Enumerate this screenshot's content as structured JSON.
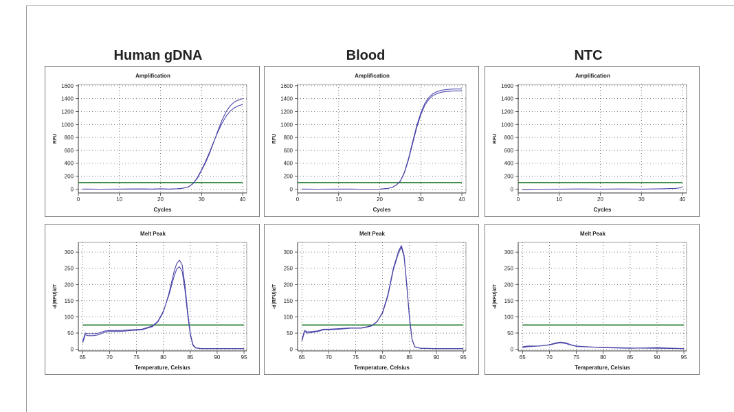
{
  "columns": [
    "Human gDNA",
    "Blood",
    "NTC"
  ],
  "chart_data": [
    {
      "type": "line",
      "column": "Human gDNA",
      "title": "Amplification",
      "xlabel": "Cycles",
      "ylabel": "RFU",
      "xlim": [
        0,
        41
      ],
      "ylim": [
        -60,
        1620
      ],
      "xticks": [
        0,
        10,
        20,
        30,
        40
      ],
      "yticks": [
        0,
        200,
        400,
        600,
        800,
        1000,
        1200,
        1400,
        1600
      ],
      "threshold": 100,
      "series": [
        {
          "x": [
            1,
            5,
            10,
            15,
            18,
            20,
            22,
            24,
            25,
            26,
            27,
            28,
            29,
            30,
            31,
            32,
            33,
            34,
            35,
            36,
            37,
            38,
            39,
            40
          ],
          "values": [
            0,
            -2,
            0,
            2,
            0,
            5,
            0,
            5,
            10,
            20,
            40,
            90,
            180,
            300,
            430,
            580,
            740,
            890,
            1020,
            1130,
            1210,
            1260,
            1290,
            1310
          ]
        },
        {
          "x": [
            1,
            5,
            10,
            15,
            18,
            20,
            22,
            24,
            25,
            26,
            27,
            28,
            29,
            30,
            31,
            32,
            33,
            34,
            35,
            36,
            37,
            38,
            39,
            40
          ],
          "values": [
            0,
            -2,
            0,
            2,
            0,
            5,
            0,
            5,
            10,
            20,
            40,
            90,
            170,
            290,
            410,
            560,
            730,
            910,
            1070,
            1200,
            1290,
            1350,
            1380,
            1400
          ]
        }
      ]
    },
    {
      "type": "line",
      "column": "Blood",
      "title": "Amplification",
      "xlabel": "Cycles",
      "ylabel": "RFU",
      "xlim": [
        0,
        41
      ],
      "ylim": [
        -60,
        1620
      ],
      "xticks": [
        0,
        10,
        20,
        30,
        40
      ],
      "yticks": [
        0,
        200,
        400,
        600,
        800,
        1000,
        1200,
        1400,
        1600
      ],
      "threshold": 100,
      "series": [
        {
          "x": [
            1,
            5,
            10,
            15,
            20,
            21,
            22,
            23,
            24,
            25,
            26,
            27,
            28,
            29,
            30,
            31,
            32,
            33,
            34,
            35,
            36,
            37,
            38,
            39,
            40
          ],
          "values": [
            0,
            -2,
            0,
            -2,
            0,
            5,
            10,
            25,
            60,
            120,
            250,
            450,
            700,
            950,
            1150,
            1300,
            1390,
            1450,
            1480,
            1500,
            1510,
            1515,
            1520,
            1520,
            1520
          ]
        },
        {
          "x": [
            1,
            5,
            10,
            15,
            20,
            21,
            22,
            23,
            24,
            25,
            26,
            27,
            28,
            29,
            30,
            31,
            32,
            33,
            34,
            35,
            36,
            37,
            38,
            39,
            40
          ],
          "values": [
            0,
            -2,
            0,
            -2,
            0,
            5,
            10,
            25,
            60,
            125,
            260,
            470,
            730,
            980,
            1180,
            1330,
            1420,
            1480,
            1510,
            1530,
            1540,
            1545,
            1550,
            1550,
            1550
          ]
        }
      ]
    },
    {
      "type": "line",
      "column": "NTC",
      "title": "Amplification",
      "xlabel": "Cycles",
      "ylabel": "RFU",
      "xlim": [
        0,
        41
      ],
      "ylim": [
        -60,
        1620
      ],
      "xticks": [
        0,
        10,
        20,
        30,
        40
      ],
      "yticks": [
        0,
        200,
        400,
        600,
        800,
        1000,
        1200,
        1400,
        1600
      ],
      "threshold": 100,
      "series": [
        {
          "x": [
            1,
            3,
            5,
            10,
            15,
            20,
            25,
            30,
            35,
            38,
            39,
            40
          ],
          "values": [
            -10,
            -5,
            -2,
            0,
            2,
            0,
            2,
            0,
            5,
            10,
            15,
            25
          ]
        }
      ]
    },
    {
      "type": "line",
      "column": "Human gDNA",
      "title": "Melt Peak",
      "xlabel": "Temperature, Celsius",
      "ylabel": "-d(RFU)/dT",
      "xlim": [
        64.2,
        95.5
      ],
      "ylim": [
        -5,
        330
      ],
      "xticks": [
        65,
        70,
        75,
        80,
        85,
        90,
        95
      ],
      "yticks": [
        0,
        50,
        100,
        150,
        200,
        250,
        300
      ],
      "threshold": 75,
      "series": [
        {
          "x": [
            65,
            65.5,
            66,
            67,
            68,
            69,
            70,
            72,
            74,
            76,
            78,
            79,
            80,
            81,
            82,
            82.5,
            83,
            83.5,
            84,
            84.5,
            85,
            85.5,
            86,
            87,
            90,
            95
          ],
          "values": [
            20,
            45,
            42,
            42,
            45,
            52,
            55,
            55,
            58,
            60,
            70,
            85,
            115,
            170,
            240,
            265,
            275,
            260,
            200,
            120,
            50,
            15,
            5,
            2,
            2,
            2
          ]
        },
        {
          "x": [
            65,
            65.5,
            66,
            67,
            68,
            69,
            70,
            72,
            74,
            76,
            78,
            79,
            80,
            81,
            82,
            82.5,
            83,
            83.5,
            84,
            84.5,
            85,
            85.5,
            86,
            87,
            90,
            95
          ],
          "values": [
            25,
            50,
            48,
            48,
            50,
            56,
            58,
            58,
            60,
            62,
            72,
            87,
            118,
            165,
            225,
            248,
            255,
            240,
            185,
            110,
            45,
            12,
            4,
            2,
            2,
            2
          ]
        }
      ]
    },
    {
      "type": "line",
      "column": "Blood",
      "title": "Melt Peak",
      "xlabel": "Temperature, Celsius",
      "ylabel": "-d(RFU)/dT",
      "xlim": [
        64.2,
        95.5
      ],
      "ylim": [
        -5,
        330
      ],
      "xticks": [
        65,
        70,
        75,
        80,
        85,
        90,
        95
      ],
      "yticks": [
        0,
        50,
        100,
        150,
        200,
        250,
        300
      ],
      "threshold": 75,
      "series": [
        {
          "x": [
            65,
            65.5,
            66,
            67,
            68,
            69,
            70,
            72,
            74,
            76,
            77,
            78,
            79,
            80,
            81,
            82,
            83,
            83.5,
            84,
            84.5,
            85,
            85.5,
            86,
            87,
            90,
            95
          ],
          "values": [
            25,
            55,
            50,
            52,
            55,
            60,
            60,
            62,
            65,
            65,
            68,
            72,
            85,
            115,
            170,
            250,
            305,
            320,
            290,
            200,
            100,
            30,
            8,
            3,
            2,
            2
          ]
        },
        {
          "x": [
            65,
            65.5,
            66,
            67,
            68,
            69,
            70,
            72,
            74,
            76,
            77,
            78,
            79,
            80,
            81,
            82,
            83,
            83.5,
            84,
            84.5,
            85,
            85.5,
            86,
            87,
            90,
            95
          ],
          "values": [
            30,
            58,
            54,
            55,
            57,
            62,
            62,
            64,
            66,
            66,
            69,
            73,
            86,
            112,
            165,
            245,
            300,
            315,
            285,
            195,
            95,
            28,
            7,
            3,
            2,
            2
          ]
        }
      ]
    },
    {
      "type": "line",
      "column": "NTC",
      "title": "Melt Peak",
      "xlabel": "Temperature, Celsius",
      "ylabel": "-d(RFU)/dT",
      "xlim": [
        64.2,
        95.5
      ],
      "ylim": [
        -5,
        330
      ],
      "xticks": [
        65,
        70,
        75,
        80,
        85,
        90,
        95
      ],
      "yticks": [
        0,
        50,
        100,
        150,
        200,
        250,
        300
      ],
      "threshold": 75,
      "series": [
        {
          "x": [
            65,
            66,
            68,
            70,
            71,
            72,
            73,
            74,
            75,
            77,
            80,
            85,
            90,
            95
          ],
          "values": [
            5,
            8,
            10,
            14,
            19,
            22,
            20,
            14,
            10,
            8,
            5,
            3,
            5,
            2
          ]
        },
        {
          "x": [
            65,
            66,
            68,
            70,
            71,
            72,
            73,
            74,
            75,
            77,
            80,
            85,
            90,
            95
          ],
          "values": [
            8,
            10,
            10,
            13,
            17,
            20,
            18,
            13,
            9,
            7,
            6,
            4,
            3,
            2
          ]
        }
      ]
    }
  ],
  "colors": {
    "curve": "#4b45a8",
    "threshold": "#1f7a2a",
    "grid": "#555555",
    "axis": "#333333"
  }
}
